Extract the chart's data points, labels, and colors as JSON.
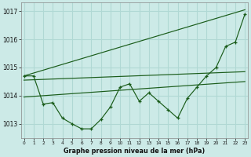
{
  "title": "Graphe pression niveau de la mer (hPa)",
  "background_color": "#cceae7",
  "grid_color": "#b0d8d4",
  "line_color": "#1a5c1a",
  "x_values": [
    0,
    1,
    2,
    3,
    4,
    5,
    6,
    7,
    8,
    9,
    10,
    11,
    12,
    13,
    14,
    15,
    16,
    17,
    18,
    19,
    20,
    21,
    22,
    23
  ],
  "series_zigzag": [
    1014.7,
    1014.7,
    1013.7,
    1013.75,
    1013.2,
    1013.0,
    1012.82,
    1012.82,
    1013.15,
    1013.6,
    1014.3,
    1014.42,
    1013.8,
    1014.1,
    1013.8,
    1013.5,
    1013.2,
    1013.9,
    1014.3,
    1014.7,
    1015.0,
    1015.75,
    1015.9,
    1016.9
  ],
  "line_steep": [
    [
      0,
      1014.7
    ],
    [
      23,
      1017.05
    ]
  ],
  "line_mid": [
    [
      0,
      1014.55
    ],
    [
      23,
      1014.85
    ]
  ],
  "line_low": [
    [
      0,
      1013.95
    ],
    [
      23,
      1014.5
    ]
  ],
  "ylim": [
    1012.5,
    1017.3
  ],
  "xlim": [
    -0.3,
    23.3
  ],
  "yticks": [
    1013,
    1014,
    1015,
    1016,
    1017
  ],
  "xticks": [
    0,
    1,
    2,
    3,
    4,
    5,
    6,
    7,
    8,
    9,
    10,
    11,
    12,
    13,
    14,
    15,
    16,
    17,
    18,
    19,
    20,
    21,
    22,
    23
  ]
}
